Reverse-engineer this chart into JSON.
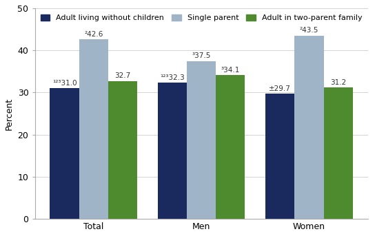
{
  "categories": [
    "Total",
    "Men",
    "Women"
  ],
  "series": [
    {
      "name": "Adult living without children",
      "values": [
        31.0,
        32.3,
        29.7
      ],
      "color": "#1b2a5e",
      "labels": [
        "¹²³31.0",
        "¹²³32.3",
        "±29.7"
      ]
    },
    {
      "name": "Single parent",
      "values": [
        42.6,
        37.5,
        43.5
      ],
      "color": "#a0b4c8",
      "labels": [
        "²42.6",
        "³37.5",
        "²43.5"
      ]
    },
    {
      "name": "Adult in two-parent family",
      "values": [
        32.7,
        34.1,
        31.2
      ],
      "color": "#4e8a2e",
      "labels": [
        "32.7",
        "³34.1",
        "31.2"
      ]
    }
  ],
  "ylabel": "Percent",
  "ylim": [
    0,
    50
  ],
  "yticks": [
    0,
    10,
    20,
    30,
    40,
    50
  ],
  "bar_width": 0.27,
  "background_color": "#ffffff",
  "label_fontsize": 7.5,
  "axis_fontsize": 9,
  "legend_fontsize": 8
}
